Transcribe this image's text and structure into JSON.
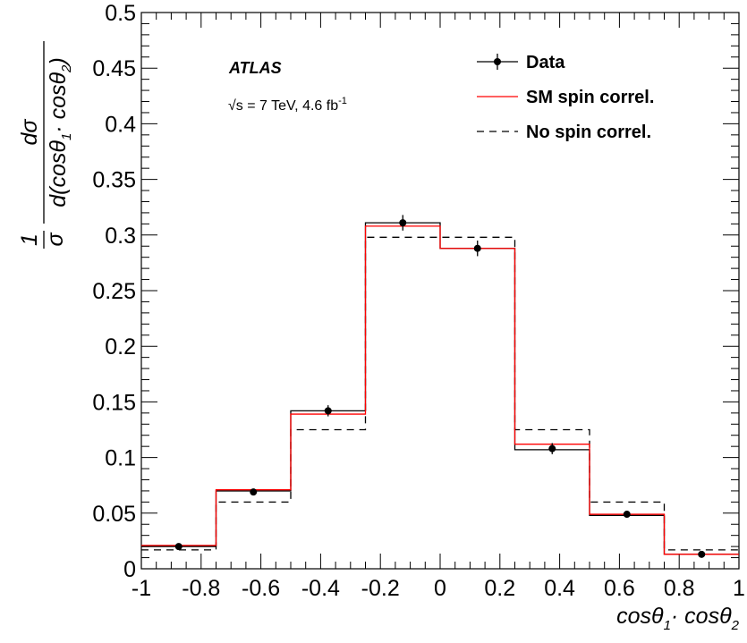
{
  "chart_data": {
    "type": "histogram",
    "bin_edges": [
      -1,
      -0.75,
      -0.5,
      -0.25,
      0,
      0.25,
      0.5,
      0.75,
      1
    ],
    "xlim": [
      -1,
      1
    ],
    "ylim": [
      0,
      0.5
    ],
    "x_ticks": [
      "-1",
      "-0.8",
      "-0.6",
      "-0.4",
      "-0.2",
      "0",
      "0.2",
      "0.4",
      "0.6",
      "0.8",
      "1"
    ],
    "y_ticks": [
      "0",
      "0.05",
      "0.1",
      "0.15",
      "0.2",
      "0.25",
      "0.3",
      "0.35",
      "0.4",
      "0.45",
      "0.5"
    ],
    "xlabel": "cosθ₁· cosθ₂",
    "ylabel": "1/σ dσ/d(cosθ₁· cosθ₂)",
    "series": [
      {
        "name": "Data",
        "style": "points-with-errors",
        "color": "#000000",
        "x": [
          -0.875,
          -0.625,
          -0.375,
          -0.125,
          0.125,
          0.375,
          0.625,
          0.875
        ],
        "values": [
          0.02,
          0.069,
          0.142,
          0.311,
          0.288,
          0.108,
          0.049,
          0.013
        ],
        "errors": [
          0.002,
          0.003,
          0.005,
          0.007,
          0.007,
          0.005,
          0.002,
          0.002
        ],
        "reference_hist": [
          0.02,
          0.07,
          0.142,
          0.311,
          0.288,
          0.107,
          0.048,
          0.013
        ]
      },
      {
        "name": "SM spin correl.",
        "style": "step-solid",
        "color": "#ff0000",
        "values": [
          0.021,
          0.071,
          0.139,
          0.308,
          0.288,
          0.112,
          0.049,
          0.013
        ]
      },
      {
        "name": "No spin correl.",
        "style": "step-dashed",
        "color": "#000000",
        "values": [
          0.017,
          0.06,
          0.125,
          0.298,
          0.298,
          0.125,
          0.06,
          0.017
        ]
      }
    ],
    "annotations": {
      "experiment": "ATLAS",
      "energy_prefix": "√s = 7 TeV, 4.6 fb",
      "energy_sup": "-1"
    },
    "legend": {
      "placement": "top-right",
      "entries": [
        "Data",
        "SM spin correl.",
        "No spin correl."
      ]
    }
  }
}
